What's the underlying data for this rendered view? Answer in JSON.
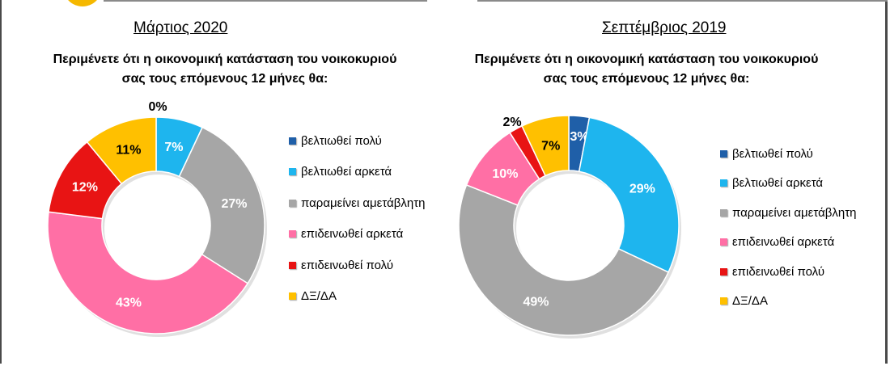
{
  "colors": {
    "very_improve": "#1f5fa8",
    "somewhat_improve": "#1eb5ee",
    "unchanged": "#a6a6a6",
    "somewhat_worse": "#ff6fa5",
    "very_worse": "#e81414",
    "dk_na": "#ffc000"
  },
  "legend_labels": [
    "βελτιωθεί πολύ",
    "βελτιωθεί αρκετά",
    "παραμείνει αμετάβλητη",
    "επιδεινωθεί αρκετά",
    "επιδεινωθεί πολύ",
    "ΔΞ/ΔΑ"
  ],
  "chart_data": [
    {
      "type": "pie",
      "variant": "donut",
      "title": "Μάρτιος 2020",
      "subtitle": "Περιμένετε ότι η οικονομική κατάσταση του νοικοκυριού σας τους επόμενους 12 μήνες θα:",
      "categories": [
        "βελτιωθεί πολύ",
        "βελτιωθεί αρκετά",
        "παραμείνει αμετάβλητη",
        "επιδεινωθεί αρκετά",
        "επιδεινωθεί πολύ",
        "ΔΞ/ΔΑ"
      ],
      "values": [
        0,
        7,
        27,
        43,
        12,
        11
      ],
      "data_labels": [
        "0%",
        "7%",
        "27%",
        "43%",
        "12%",
        "11%"
      ],
      "legend_position": "right"
    },
    {
      "type": "pie",
      "variant": "donut",
      "title": "Σεπτέμβριος 2019",
      "subtitle": "Περιμένετε ότι η οικονομική κατάσταση του νοικοκυριού σας τους επόμενους 12 μήνες θα:",
      "categories": [
        "βελτιωθεί πολύ",
        "βελτιωθεί αρκετά",
        "παραμείνει αμετάβλητη",
        "επιδεινωθεί αρκετά",
        "επιδεινωθεί πολύ",
        "ΔΞ/ΔΑ"
      ],
      "values": [
        3,
        29,
        49,
        10,
        2,
        7
      ],
      "data_labels": [
        "3%",
        "29%",
        "49%",
        "10%",
        "2%",
        "7%"
      ],
      "legend_position": "right"
    }
  ]
}
